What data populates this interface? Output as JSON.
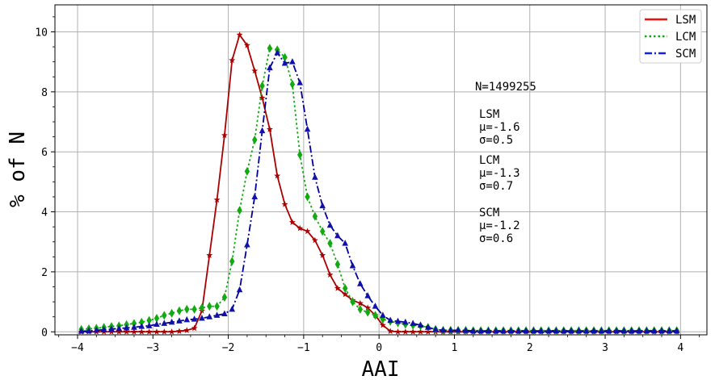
{
  "chart_data": {
    "type": "line",
    "xlabel": "AAI",
    "ylabel": "% of N",
    "xlim": [
      -4.3,
      4.35
    ],
    "ylim": [
      -0.1,
      10.9
    ],
    "xticks": [
      -4,
      -3,
      -2,
      -1,
      0,
      1,
      2,
      3,
      4
    ],
    "yticks": [
      0,
      2,
      4,
      6,
      8,
      10
    ],
    "xtick_labels": [
      "−4",
      "−3",
      "−2",
      "−1",
      "0",
      "1",
      "2",
      "3",
      "4"
    ],
    "ytick_labels": [
      "0",
      "2",
      "4",
      "6",
      "8",
      "10"
    ],
    "grid": true,
    "legend_position": "top-right",
    "x": [
      -3.95,
      -3.85,
      -3.75,
      -3.65,
      -3.55,
      -3.45,
      -3.35,
      -3.25,
      -3.15,
      -3.05,
      -2.95,
      -2.85,
      -2.75,
      -2.65,
      -2.55,
      -2.45,
      -2.35,
      -2.25,
      -2.15,
      -2.05,
      -1.95,
      -1.85,
      -1.75,
      -1.65,
      -1.55,
      -1.45,
      -1.35,
      -1.25,
      -1.15,
      -1.05,
      -0.95,
      -0.85,
      -0.75,
      -0.65,
      -0.55,
      -0.45,
      -0.35,
      -0.25,
      -0.15,
      -0.05,
      0.05,
      0.15,
      0.25,
      0.35,
      0.45,
      0.55,
      0.65,
      0.75,
      0.85,
      0.95,
      1.05,
      1.15,
      1.25,
      1.35,
      1.45,
      1.55,
      1.65,
      1.75,
      1.85,
      1.95,
      2.05,
      2.15,
      2.25,
      2.35,
      2.45,
      2.55,
      2.65,
      2.75,
      2.85,
      2.95,
      3.05,
      3.15,
      3.25,
      3.35,
      3.45,
      3.55,
      3.65,
      3.75,
      3.85,
      3.95
    ],
    "series": [
      {
        "name": "LSM",
        "legend_color": "#ee1111",
        "color": "#aa0000",
        "marker_color": "#aa0000",
        "linestyle": "solid",
        "marker": "star",
        "values": [
          0,
          0,
          0,
          0,
          0,
          0,
          0,
          0,
          0,
          0,
          0,
          0,
          0,
          0.02,
          0.05,
          0.12,
          0.7,
          2.55,
          4.4,
          6.55,
          9.05,
          9.9,
          9.55,
          8.7,
          7.8,
          6.75,
          5.2,
          4.25,
          3.65,
          3.45,
          3.35,
          3.05,
          2.55,
          1.9,
          1.45,
          1.25,
          1.05,
          0.95,
          0.8,
          0.55,
          0.22,
          0.02,
          0,
          0,
          0,
          0,
          0,
          0,
          0,
          0,
          0,
          0,
          0,
          0,
          0,
          0,
          0,
          0,
          0,
          0,
          0,
          0,
          0,
          0,
          0,
          0,
          0,
          0,
          0,
          0,
          0,
          0,
          0,
          0,
          0,
          0,
          0,
          0,
          0,
          0
        ]
      },
      {
        "name": "LCM",
        "legend_color": "#11aa11",
        "color": "#11aa11",
        "marker_color": "#11aa11",
        "linestyle": "dotted",
        "marker": "diamond",
        "values": [
          0.08,
          0.1,
          0.12,
          0.15,
          0.18,
          0.2,
          0.24,
          0.28,
          0.32,
          0.38,
          0.45,
          0.55,
          0.62,
          0.7,
          0.75,
          0.75,
          0.8,
          0.85,
          0.85,
          1.15,
          2.35,
          4.05,
          5.35,
          6.4,
          8.2,
          9.45,
          9.4,
          9.15,
          8.25,
          5.9,
          4.5,
          3.85,
          3.35,
          2.95,
          2.25,
          1.45,
          1.0,
          0.75,
          0.65,
          0.55,
          0.42,
          0.35,
          0.3,
          0.25,
          0.22,
          0.2,
          0.15,
          0.08,
          0.05,
          0.05,
          0.05,
          0.05,
          0.04,
          0.04,
          0.04,
          0.04,
          0.04,
          0.04,
          0.04,
          0.04,
          0.04,
          0.04,
          0.04,
          0.04,
          0.04,
          0.04,
          0.04,
          0.04,
          0.04,
          0.04,
          0.04,
          0.04,
          0.04,
          0.04,
          0.04,
          0.04,
          0.04,
          0.04,
          0.04,
          0.04
        ]
      },
      {
        "name": "SCM",
        "legend_color": "#1122ee",
        "color": "#000099",
        "marker_color": "#1111aa",
        "linestyle": "dashdot",
        "marker": "triangle",
        "values": [
          0.02,
          0.03,
          0.05,
          0.07,
          0.09,
          0.11,
          0.13,
          0.15,
          0.18,
          0.2,
          0.25,
          0.28,
          0.32,
          0.36,
          0.4,
          0.42,
          0.45,
          0.5,
          0.55,
          0.6,
          0.75,
          1.4,
          2.9,
          4.5,
          6.7,
          8.8,
          9.3,
          8.95,
          9.0,
          8.3,
          6.75,
          5.15,
          4.2,
          3.55,
          3.2,
          2.95,
          2.2,
          1.6,
          1.2,
          0.85,
          0.55,
          0.38,
          0.35,
          0.32,
          0.28,
          0.22,
          0.15,
          0.08,
          0.05,
          0.05,
          0.05,
          0.04,
          0.03,
          0.03,
          0.03,
          0.03,
          0.03,
          0.03,
          0.03,
          0.03,
          0.03,
          0.03,
          0.03,
          0.03,
          0.03,
          0.03,
          0.03,
          0.03,
          0.03,
          0.03,
          0.03,
          0.03,
          0.03,
          0.03,
          0.03,
          0.03,
          0.03,
          0.03,
          0.03,
          0.03
        ]
      }
    ],
    "annotations": {
      "total": "N=1499255",
      "lsm_name": "LSM",
      "lsm_mu": "μ=-1.6",
      "lsm_sigma": "σ=0.5",
      "lcm_name": "LCM",
      "lcm_mu": "μ=-1.3",
      "lcm_sigma": "σ=0.7",
      "scm_name": "SCM",
      "scm_mu": "μ=-1.2",
      "scm_sigma": "σ=0.6"
    }
  }
}
